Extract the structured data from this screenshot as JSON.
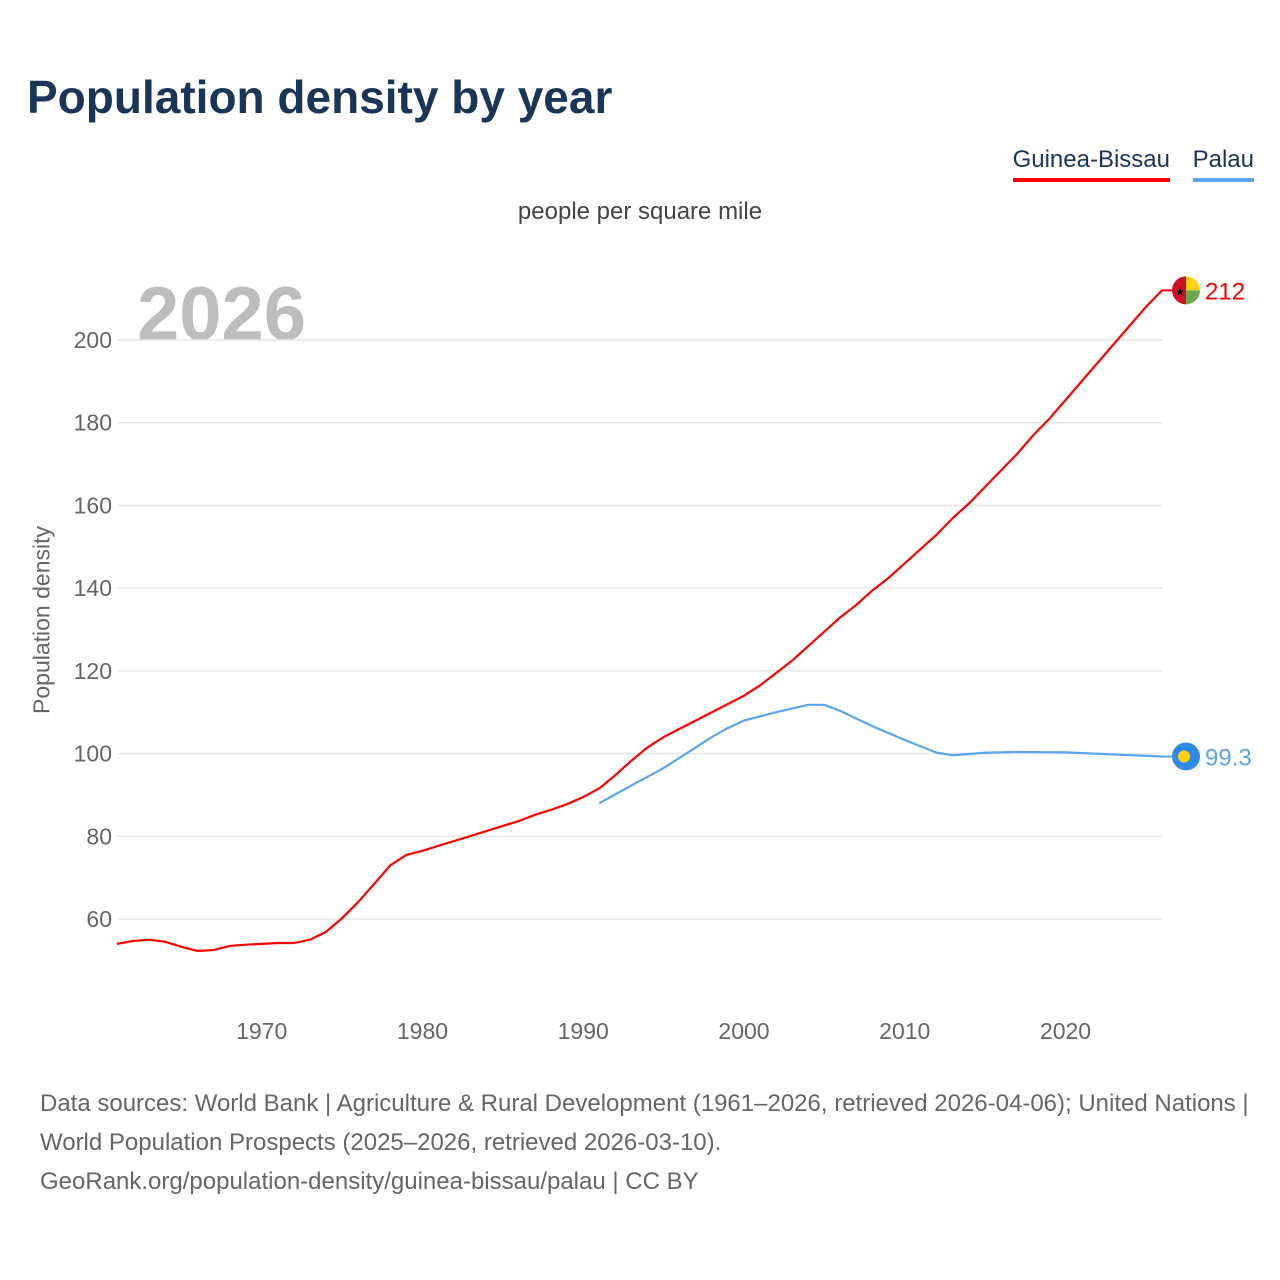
{
  "title": "Population density by year",
  "legend": [
    "Guinea-Bissau",
    "Palau"
  ],
  "footer": {
    "line1": "Data sources: World Bank | Agriculture & Rural Development (1961–2026, retrieved 2026-04-06); United Nations | World Population Prospects (2025–2026, retrieved 2026-03-10).",
    "line2": "GeoRank.org/population-density/guinea-bissau/palau | CC BY"
  },
  "chart_data": {
    "type": "line",
    "title": "Population density by year",
    "subtitle": "people per square mile",
    "xlabel": "",
    "ylabel": "Population density",
    "year_label": "2026",
    "xlim": [
      1961,
      2026
    ],
    "ylim": [
      40,
      212
    ],
    "xticks": [
      1970,
      1980,
      1990,
      2000,
      2010,
      2020
    ],
    "yticks": [
      60,
      80,
      100,
      120,
      140,
      160,
      180,
      200
    ],
    "grid": true,
    "legend_position": "top-right",
    "series": [
      {
        "name": "Guinea-Bissau",
        "color": "#ff0000",
        "end_label": "212",
        "x": [
          1961,
          1962,
          1963,
          1964,
          1965,
          1966,
          1967,
          1968,
          1969,
          1970,
          1971,
          1972,
          1973,
          1974,
          1975,
          1976,
          1977,
          1978,
          1979,
          1980,
          1981,
          1982,
          1983,
          1984,
          1985,
          1986,
          1987,
          1988,
          1989,
          1990,
          1991,
          1992,
          1993,
          1994,
          1995,
          1996,
          1997,
          1998,
          1999,
          2000,
          2001,
          2002,
          2003,
          2004,
          2005,
          2006,
          2007,
          2008,
          2009,
          2010,
          2011,
          2012,
          2013,
          2014,
          2015,
          2016,
          2017,
          2018,
          2019,
          2020,
          2021,
          2022,
          2023,
          2024,
          2025,
          2026
        ],
        "y": [
          54.0,
          54.7,
          55.0,
          54.5,
          53.3,
          52.3,
          52.5,
          53.5,
          53.8,
          54.0,
          54.2,
          54.2,
          55.0,
          56.9,
          60.2,
          64.1,
          68.5,
          73.0,
          75.5,
          76.5,
          77.7,
          78.9,
          80.1,
          81.3,
          82.5,
          83.7,
          85.2,
          86.4,
          87.8,
          89.5,
          91.6,
          94.8,
          98.3,
          101.5,
          104.0,
          106.0,
          108.0,
          110.0,
          112.0,
          114.0,
          116.5,
          119.5,
          122.5,
          126.0,
          129.5,
          133.0,
          136.0,
          139.5,
          142.5,
          146.0,
          149.5,
          153.0,
          157.0,
          160.5,
          164.5,
          168.5,
          172.5,
          177.0,
          181.0,
          185.5,
          190.0,
          194.5,
          199.0,
          203.5,
          208.0,
          212.0
        ]
      },
      {
        "name": "Palau",
        "color": "#5aa5ee",
        "end_label": "99.3",
        "x": [
          1991,
          1993,
          1995,
          1997,
          1998,
          1999,
          2000,
          2002,
          2004,
          2005,
          2006,
          2008,
          2010,
          2012,
          2013,
          2015,
          2017,
          2020,
          2023,
          2026
        ],
        "y": [
          88.0,
          92.3,
          96.5,
          101.5,
          104.0,
          106.2,
          108.0,
          110.0,
          111.8,
          111.8,
          110.3,
          106.6,
          103.3,
          100.2,
          99.6,
          100.2,
          100.4,
          100.3,
          99.8,
          99.3
        ]
      }
    ]
  }
}
